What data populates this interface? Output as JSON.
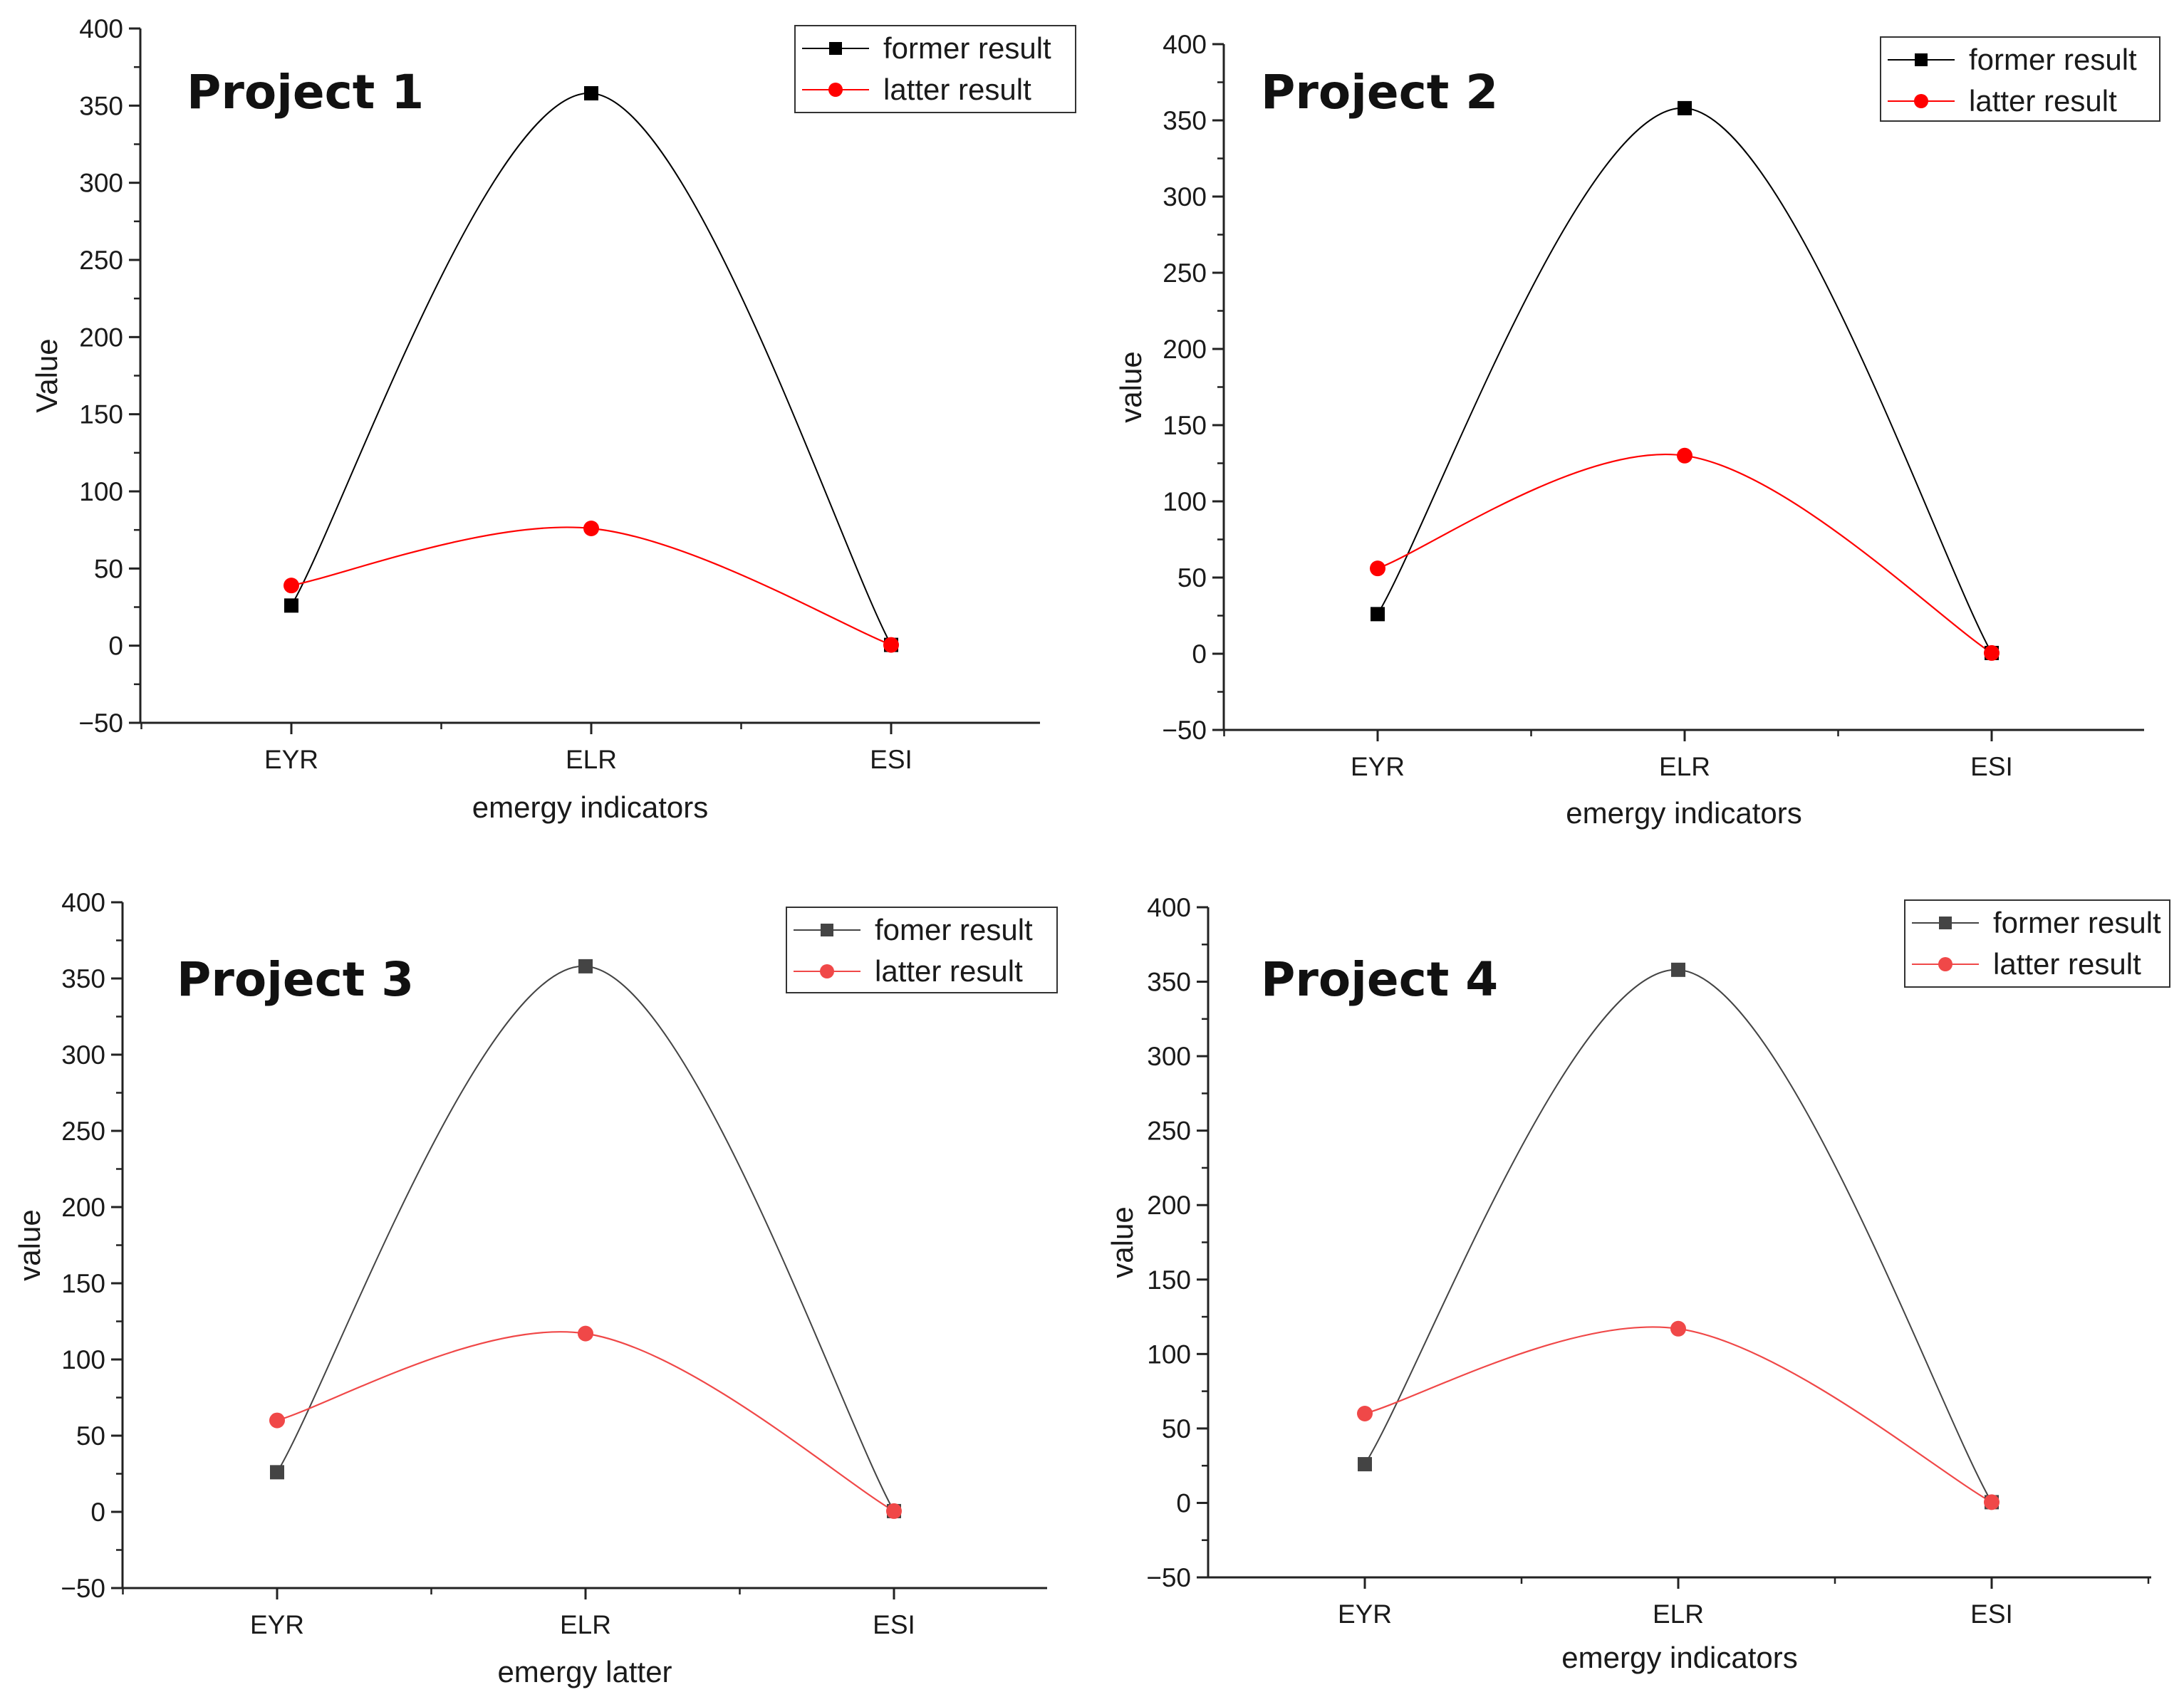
{
  "colors": {
    "former": "#000000",
    "former_muted": "#444444",
    "latter": "#ff0000",
    "latter_muted": "#f04848",
    "axis": "#222222"
  },
  "chart_data": [
    {
      "type": "line",
      "title": "Project 1",
      "xlabel": "emergy indicators",
      "ylabel": "Value",
      "categories": [
        "EYR",
        "ELR",
        "ESI"
      ],
      "ylim": [
        -50,
        400
      ],
      "yticks": [
        -50,
        0,
        50,
        100,
        150,
        200,
        250,
        300,
        350,
        400
      ],
      "legend_position": "top-right",
      "series": [
        {
          "name": "former result",
          "values": [
            26,
            358,
            0.5
          ]
        },
        {
          "name": "latter result",
          "values": [
            39,
            76,
            0.5
          ]
        }
      ]
    },
    {
      "type": "line",
      "title": "Project 2",
      "xlabel": "emergy indicators",
      "ylabel": "value",
      "categories": [
        "EYR",
        "ELR",
        "ESI"
      ],
      "ylim": [
        -50,
        400
      ],
      "yticks": [
        -50,
        0,
        50,
        100,
        150,
        200,
        250,
        300,
        350,
        400
      ],
      "legend_position": "top-right",
      "series": [
        {
          "name": "former result",
          "values": [
            26,
            358,
            0.5
          ]
        },
        {
          "name": "latter result",
          "values": [
            56,
            130,
            0.5
          ]
        }
      ]
    },
    {
      "type": "line",
      "title": "Project 3",
      "xlabel": "emergy latter",
      "ylabel": "value",
      "categories": [
        "EYR",
        "ELR",
        "ESI"
      ],
      "ylim": [
        -50,
        400
      ],
      "yticks": [
        -50,
        0,
        50,
        100,
        150,
        200,
        250,
        300,
        350,
        400
      ],
      "legend_position": "top-right",
      "series": [
        {
          "name": "fomer result",
          "values": [
            26,
            358,
            0.5
          ]
        },
        {
          "name": "latter result",
          "values": [
            60,
            117,
            0.5
          ]
        }
      ]
    },
    {
      "type": "line",
      "title": "Project 4",
      "xlabel": "emergy indicators",
      "ylabel": "value",
      "categories": [
        "EYR",
        "ELR",
        "ESI"
      ],
      "ylim": [
        -50,
        400
      ],
      "yticks": [
        -50,
        0,
        50,
        100,
        150,
        200,
        250,
        300,
        350,
        400
      ],
      "legend_position": "top-right",
      "series": [
        {
          "name": "former result",
          "values": [
            26,
            358,
            0.5
          ]
        },
        {
          "name": "latter result",
          "values": [
            60,
            117,
            0.5
          ]
        }
      ]
    }
  ]
}
